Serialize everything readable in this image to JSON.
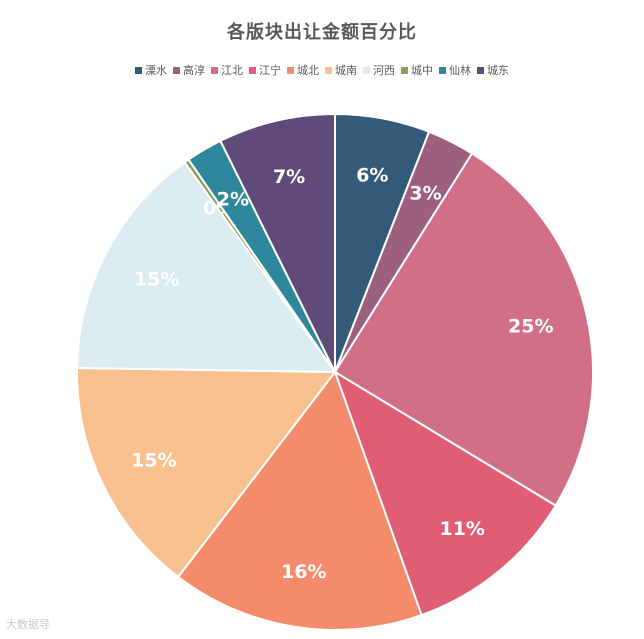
{
  "chart_data": {
    "type": "pie",
    "title": "各版块出让金额百分比",
    "legend_position": "top",
    "slices": [
      {
        "name": "溧水",
        "value": 6,
        "label": "6%",
        "color": "#345a7a"
      },
      {
        "name": "高淳",
        "value": 3,
        "label": "3%",
        "color": "#9c5f7e"
      },
      {
        "name": "江北",
        "value": 25,
        "label": "25%",
        "color": "#d06f85"
      },
      {
        "name": "江宁",
        "value": 11,
        "label": "11%",
        "color": "#e05d74"
      },
      {
        "name": "城北",
        "value": 16,
        "label": "16%",
        "color": "#f48c6b"
      },
      {
        "name": "城南",
        "value": 15,
        "label": "15%",
        "color": "#f8c08e"
      },
      {
        "name": "河西",
        "value": 15,
        "label": "15%",
        "color": "#dbedf3"
      },
      {
        "name": "城中",
        "value": 0.3,
        "label": "0%",
        "color": "#8aa05a"
      },
      {
        "name": "仙林",
        "value": 2.3,
        "label": "2%",
        "color": "#2f879c"
      },
      {
        "name": "城东",
        "value": 7.4,
        "label": "7%",
        "color": "#5f4a7a"
      }
    ]
  },
  "watermark": "大数据导"
}
